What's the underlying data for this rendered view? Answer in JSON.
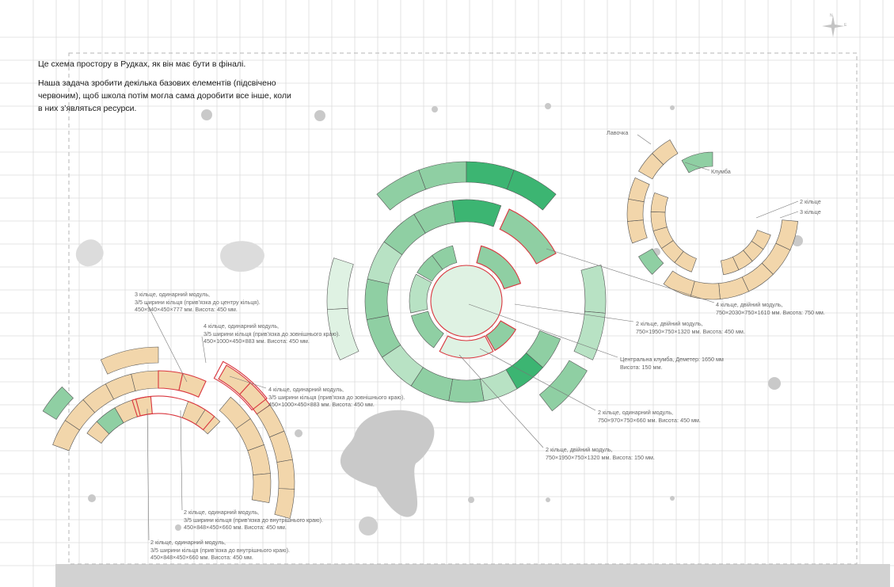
{
  "intro": {
    "line1": "Це схема простору в Рудках, як він має бути в фіналі.",
    "line2": "Наша задача зробити декілька базових елементів (підсвічено червоним), щоб школа потім могла сама доробити все інше, коли в них з’являться ресурси."
  },
  "compass": {
    "icon": "compass-rose-icon",
    "letters": [
      "N",
      "E"
    ]
  },
  "colors": {
    "grid": "#dcdcdc",
    "border": "#b5b5b5",
    "green_dark": "#3cb572",
    "green_mid": "#8fcfa3",
    "green_light": "#b8e2c4",
    "green_pale": "#dff2e3",
    "sand": "#f2d6ab",
    "highlight": "#d9363e",
    "ground": "#c8c8c8"
  },
  "labels": {
    "bench": "Лавочка",
    "flowerbed": "Клумба",
    "ring2": "2 кільце",
    "ring3": "3 кільце"
  },
  "notes": {
    "ring4_double": [
      "4 кільце, двійний модуль,",
      "750×2030×750×1610 мм. Висота: 750 мм."
    ],
    "ring2_double_a": [
      "2 кільце, двійний модуль,",
      "750×1950×750×1320 мм. Висота: 450 мм."
    ],
    "central_bed": [
      "Центральна клумба, Деметер: 1650 мм",
      "Висота: 150 мм."
    ],
    "ring2_single": [
      "2 кільце, одинарний модуль,",
      "750×970×750×660 мм. Висота: 450 мм."
    ],
    "ring2_double_b": [
      "2 кільце, двійний модуль,",
      "750×1950×750×1320 мм. Висота: 150 мм."
    ],
    "ring3_single": [
      "3 кільце, одинарний модуль,",
      "3/5 ширини кільця (прив’язка до центру кільця).",
      "450×940×450×777 мм. Висота: 450 мм."
    ],
    "ring4_single_a": [
      "4 кільце, одинарний модуль,",
      "3/5 ширини кільця (прив’язка до зовнішнього краю).",
      "450×1000×450×883 мм. Висота: 450 мм."
    ],
    "ring4_single_b": [
      "4 кільце, одинарний модуль,",
      "3/5 ширини кільця (прив’язка до зовнішнього краю).",
      "450×1000×450×883 мм. Висота: 450 мм."
    ],
    "ring2_inner_a": [
      "2 кільце, одинарний модуль,",
      "3/5 ширини кільця (прив’язка до внутрішнього краю).",
      "450×848×450×660 мм. Висота: 450 мм."
    ],
    "ring2_inner_b": [
      "2 кільце, одинарний модуль,",
      "3/5 ширини кільця (прив’язка до внутрішнього краю).",
      "450×848×450×660 мм. Висота: 450 мм."
    ]
  }
}
